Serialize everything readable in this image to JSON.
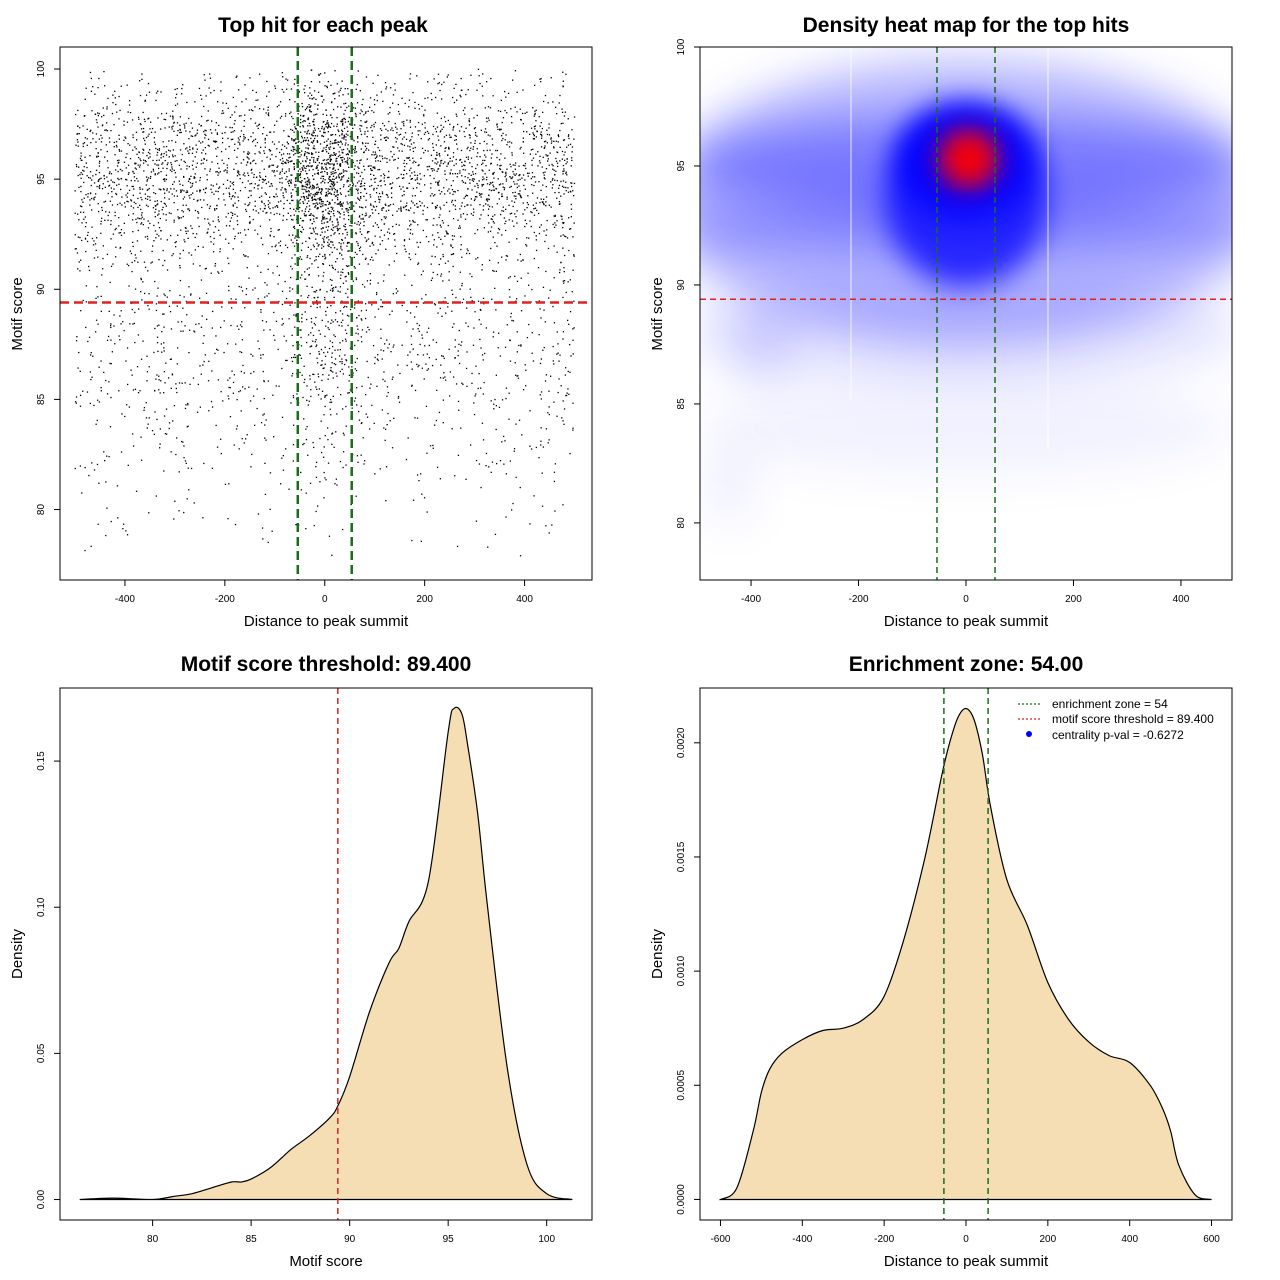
{
  "colors": {
    "threshold_red": "#dd2222",
    "zone_green": "#1a6e1a",
    "density_fill": "#f5deb3",
    "heat_blue": "#0000ff",
    "heat_red": "#ff0000",
    "points": "#000000",
    "legend_dot": "#0000ff"
  },
  "chart_data": [
    {
      "id": "scatter",
      "type": "scatter",
      "title": "Top hit for each peak",
      "xlabel": "Distance to peak summit",
      "ylabel": "Motif score",
      "xlim": [
        -530,
        535
      ],
      "ylim": [
        76.8,
        101
      ],
      "xticks": [
        -400,
        -200,
        0,
        200,
        400
      ],
      "yticks": [
        80,
        85,
        90,
        95,
        100
      ],
      "hlines": [
        89.4
      ],
      "vlines": [
        -54,
        54
      ],
      "point_count": 5200,
      "x_range": [
        -500,
        500
      ],
      "y_range": [
        77.8,
        100
      ],
      "mode_score": 95.3
    },
    {
      "id": "heatmap",
      "type": "heatmap",
      "title": "Density heat map for the top hits",
      "xlabel": "Distance to peak summit",
      "ylabel": "Motif score",
      "xlim": [
        -495,
        495
      ],
      "ylim": [
        77.6,
        100
      ],
      "xticks": [
        -400,
        -200,
        0,
        200,
        400
      ],
      "yticks": [
        80,
        85,
        90,
        95,
        100
      ],
      "hlines": [
        89.4
      ],
      "vlines": [
        -54,
        54
      ],
      "peak": {
        "x": 5,
        "y": 95.3
      }
    },
    {
      "id": "score-density",
      "type": "area",
      "title": "Motif score threshold: 89.400",
      "xlabel": "Motif score",
      "ylabel": "Density",
      "xlim": [
        75.3,
        102.3
      ],
      "ylim": [
        -0.007,
        0.175
      ],
      "xticks": [
        80,
        85,
        90,
        95,
        100
      ],
      "yticks": [
        0.0,
        0.05,
        0.1,
        0.15
      ],
      "ytick_labels": [
        "0.00",
        "0.05",
        "0.10",
        "0.15"
      ],
      "vlines": [
        89.4
      ],
      "x": [
        76.3,
        78.0,
        80.0,
        81.0,
        82.0,
        83.0,
        84.0,
        84.5,
        85.0,
        86.0,
        87.0,
        88.0,
        89.0,
        89.4,
        90.0,
        91.0,
        92.0,
        92.5,
        93.0,
        94.0,
        95.0,
        95.3,
        95.7,
        96.0,
        96.5,
        97.0,
        98.0,
        99.0,
        100.0,
        101.3
      ],
      "y": [
        0.0,
        0.0005,
        0.0,
        0.001,
        0.002,
        0.004,
        0.006,
        0.006,
        0.007,
        0.011,
        0.017,
        0.022,
        0.028,
        0.032,
        0.042,
        0.064,
        0.081,
        0.086,
        0.095,
        0.109,
        0.16,
        0.168,
        0.166,
        0.155,
        0.132,
        0.1,
        0.045,
        0.012,
        0.002,
        0.0
      ]
    },
    {
      "id": "distance-density",
      "type": "area",
      "title": "Enrichment zone: 54.00",
      "xlabel": "Distance to peak summit",
      "ylabel": "Density",
      "xlim": [
        -650,
        650
      ],
      "ylim": [
        -9e-05,
        0.00224
      ],
      "xticks": [
        -600,
        -400,
        -200,
        0,
        200,
        400,
        600
      ],
      "yticks": [
        0.0,
        0.0005,
        0.001,
        0.0015,
        0.002
      ],
      "ytick_labels": [
        "0.0000",
        "0.0005",
        "0.0010",
        "0.0015",
        "0.0020"
      ],
      "vlines": [
        -54,
        54
      ],
      "x": [
        -600,
        -560,
        -520,
        -500,
        -480,
        -450,
        -400,
        -350,
        -300,
        -250,
        -200,
        -150,
        -100,
        -60,
        -40,
        -20,
        0,
        20,
        40,
        60,
        100,
        150,
        200,
        250,
        300,
        350,
        400,
        450,
        480,
        500,
        520,
        560,
        600
      ],
      "y": [
        0.0,
        5e-05,
        0.0003,
        0.00047,
        0.00057,
        0.00064,
        0.0007,
        0.00074,
        0.00075,
        0.00079,
        0.00089,
        0.00115,
        0.0015,
        0.00185,
        0.002,
        0.00211,
        0.00215,
        0.0021,
        0.00195,
        0.00172,
        0.0014,
        0.0012,
        0.00095,
        0.00079,
        0.00069,
        0.00063,
        0.0006,
        0.0005,
        0.0004,
        0.0003,
        0.00015,
        2e-05,
        0.0
      ],
      "legend": {
        "position": "top-right",
        "entries": [
          {
            "label": "enrichment zone = 54",
            "kind": "dotted-line",
            "color": "#1a6e1a"
          },
          {
            "label": "motif score threshold = 89.400",
            "kind": "dotted-line",
            "color": "#dd2222"
          },
          {
            "label": "centrality p-val = -0.6272",
            "kind": "dot",
            "color": "#0000ff"
          }
        ]
      }
    }
  ]
}
